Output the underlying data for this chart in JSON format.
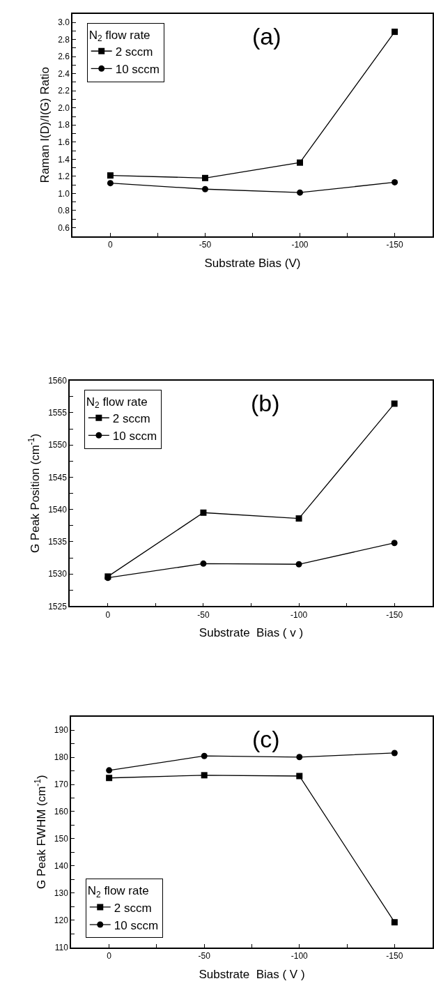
{
  "chart_data": [
    {
      "type": "line",
      "xlabel": "Substrate Bias (V)",
      "ylabel": "Raman I(D)/I(G) Ratio",
      "legend_title": "N$_{2}$ flow rate",
      "annotations": [
        "(a)"
      ],
      "legend": "top left",
      "line_style": "solid",
      "x": [
        0,
        -50,
        -100,
        -150
      ],
      "xlim": [
        20,
        -170
      ],
      "xticks": [
        0,
        {
          "value": -25,
          "label": null
        },
        -50,
        {
          "value": -75,
          "label": null
        },
        -100,
        {
          "value": -125,
          "label": null
        },
        -150
      ],
      "ylim": [
        0.5,
        3.1
      ],
      "yticks": [
        0.6,
        {
          "value": 0.7,
          "label": null
        },
        0.8,
        {
          "value": 0.9,
          "label": null
        },
        {
          "value": 1.0,
          "label": "1.0"
        },
        {
          "value": 1.1,
          "label": null
        },
        1.2,
        {
          "value": 1.3,
          "label": null
        },
        1.4,
        {
          "value": 1.5,
          "label": null
        },
        1.6,
        {
          "value": 1.7,
          "label": null
        },
        1.8,
        {
          "value": 1.9,
          "label": null
        },
        {
          "value": 2.0,
          "label": "2.0"
        },
        {
          "value": 2.1,
          "label": null
        },
        2.2,
        {
          "value": 2.3,
          "label": null
        },
        2.4,
        {
          "value": 2.5,
          "label": null
        },
        2.6,
        {
          "value": 2.7,
          "label": null
        },
        2.8,
        {
          "value": 2.9,
          "label": null
        },
        {
          "value": 3.0,
          "label": "3.0"
        }
      ],
      "series": [
        {
          "name": "2 sccm",
          "color": "#000000",
          "marker": "square",
          "values": [
            1.21,
            1.18,
            1.36,
            2.89
          ]
        },
        {
          "name": "10 sccm",
          "color": "#000000",
          "marker": "circle",
          "values": [
            1.12,
            1.05,
            1.01,
            1.13
          ]
        }
      ]
    },
    {
      "type": "line",
      "xlabel": "Substrate  Bias ( v )",
      "ylabel": "G Peak Position (cm$^{-1}$)",
      "legend_title": "N$_{2}$ flow rate",
      "annotations": [
        "(b)"
      ],
      "legend": "top left",
      "line_style": "solid",
      "x": [
        0,
        -50,
        -100,
        -150
      ],
      "xlim": [
        20,
        -170
      ],
      "xticks": [
        0,
        {
          "value": -25,
          "label": null
        },
        -50,
        {
          "value": -75,
          "label": null
        },
        -100,
        {
          "value": -125,
          "label": null
        },
        -150
      ],
      "ylim": [
        1525,
        1560
      ],
      "yticks": [
        1525,
        {
          "value": 1527.5,
          "label": null
        },
        1530,
        {
          "value": 1532.5,
          "label": null
        },
        1535,
        {
          "value": 1537.5,
          "label": null
        },
        1540,
        {
          "value": 1542.5,
          "label": null
        },
        1545,
        {
          "value": 1547.5,
          "label": null
        },
        1550,
        {
          "value": 1552.5,
          "label": null
        },
        1555,
        {
          "value": 1557.5,
          "label": null
        },
        1560
      ],
      "series": [
        {
          "name": "2 sccm",
          "color": "#000000",
          "marker": "square",
          "values": [
            1529.6,
            1539.5,
            1538.6,
            1556.4
          ]
        },
        {
          "name": "10 sccm",
          "color": "#000000",
          "marker": "circle",
          "values": [
            1529.4,
            1531.6,
            1531.5,
            1534.8
          ]
        }
      ]
    },
    {
      "type": "line",
      "xlabel": "Substrate  Bias ( V )",
      "ylabel": "G Peak FWHM (cm$^{-1}$)",
      "legend_title": "N$_{2}$ flow rate",
      "annotations": [
        "(c)"
      ],
      "legend": "bottom left",
      "line_style": "solid",
      "x": [
        0,
        -50,
        -100,
        -150
      ],
      "xlim": [
        20,
        -170
      ],
      "xticks": [
        0,
        {
          "value": -25,
          "label": null
        },
        -50,
        {
          "value": -75,
          "label": null
        },
        -100,
        {
          "value": -125,
          "label": null
        },
        -150
      ],
      "ylim": [
        110,
        195
      ],
      "yticks": [
        110,
        {
          "value": 115,
          "label": null
        },
        120,
        {
          "value": 125,
          "label": null
        },
        130,
        {
          "value": 135,
          "label": null
        },
        140,
        {
          "value": 145,
          "label": null
        },
        150,
        {
          "value": 155,
          "label": null
        },
        160,
        {
          "value": 165,
          "label": null
        },
        170,
        {
          "value": 175,
          "label": null
        },
        180,
        {
          "value": 185,
          "label": null
        },
        190
      ],
      "series": [
        {
          "name": "2 sccm",
          "color": "#000000",
          "marker": "square",
          "values": [
            172.4,
            173.4,
            173.1,
            119.2
          ]
        },
        {
          "name": "10 sccm",
          "color": "#000000",
          "marker": "circle",
          "values": [
            175.2,
            180.5,
            180.1,
            181.6
          ]
        }
      ]
    }
  ]
}
